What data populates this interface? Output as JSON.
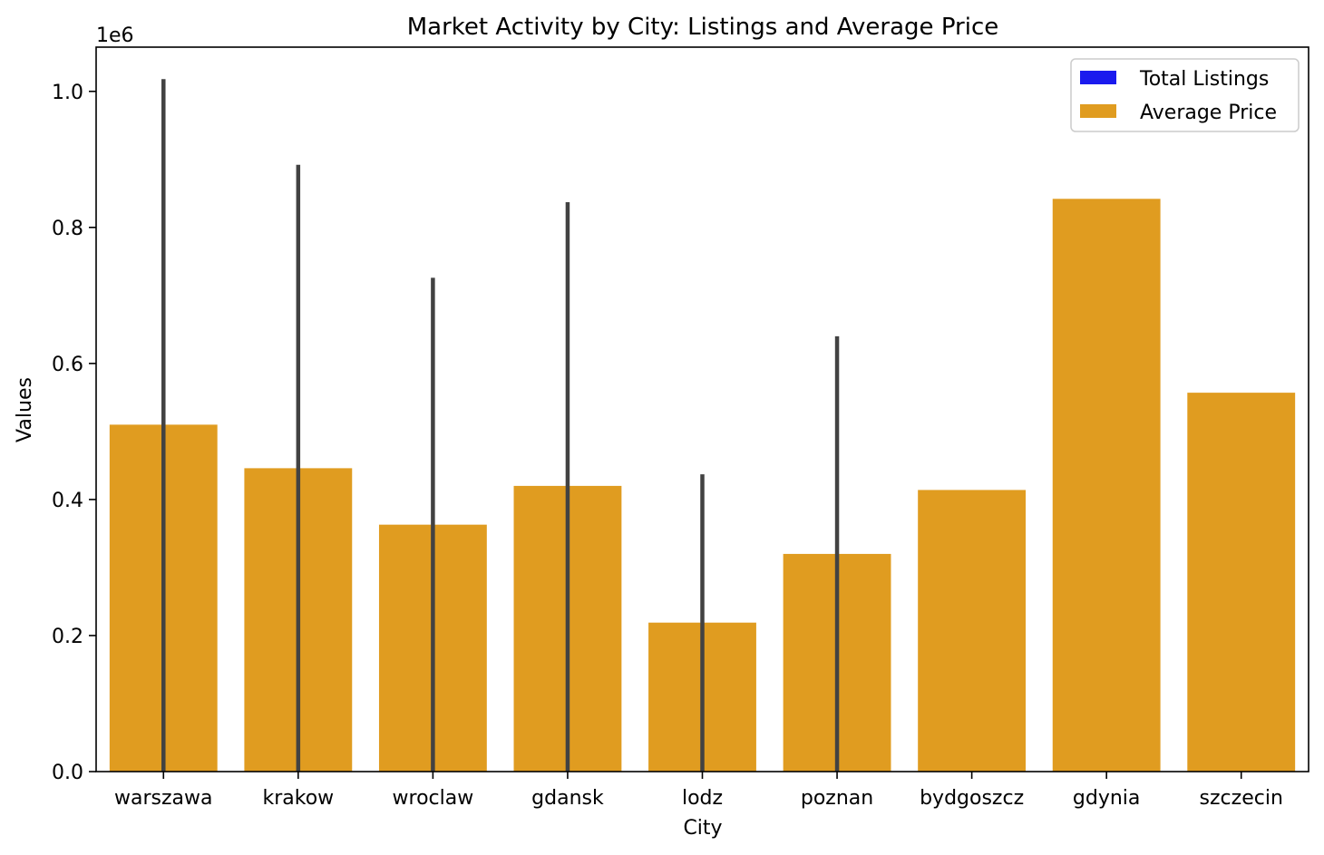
{
  "chart_data": {
    "type": "bar",
    "title": "Market Activity by City: Listings and Average Price",
    "xlabel": "City",
    "ylabel": "Values",
    "offset_text": "1e6",
    "categories": [
      "warszawa",
      "krakow",
      "wroclaw",
      "gdansk",
      "lodz",
      "poznan",
      "bydgoszcz",
      "gdynia",
      "szczecin"
    ],
    "yticks": [
      0.0,
      0.2,
      0.4,
      0.6,
      0.8,
      1.0
    ],
    "ytick_labels": [
      "0.0",
      "0.2",
      "0.4",
      "0.6",
      "0.8",
      "1.0"
    ],
    "ylim": [
      0,
      1065000
    ],
    "grid": false,
    "legend": {
      "position": "top-right"
    },
    "series": [
      {
        "name": "Total Listings",
        "color": "#1a1aee",
        "values": [
          null,
          null,
          null,
          null,
          null,
          null,
          null,
          null,
          null
        ],
        "error_ranges": [
          [
            0,
            1018000
          ],
          [
            0,
            892000
          ],
          [
            0,
            726000
          ],
          [
            0,
            837000
          ],
          [
            0,
            437000
          ],
          [
            0,
            640000
          ],
          null,
          null,
          null
        ]
      },
      {
        "name": "Average Price",
        "color": "#e09c20",
        "values": [
          510000,
          446000,
          363000,
          420000,
          219000,
          320000,
          414000,
          842000,
          557000
        ]
      }
    ]
  }
}
